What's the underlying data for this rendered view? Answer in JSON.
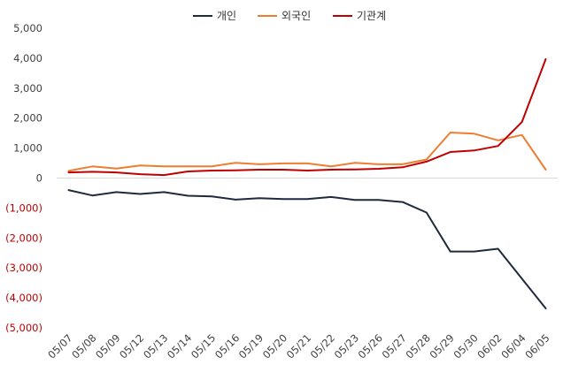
{
  "chart_data": {
    "type": "line",
    "title": "",
    "xlabel": "",
    "ylabel": "",
    "categories": [
      "05/07",
      "05/08",
      "05/09",
      "05/12",
      "05/13",
      "05/14",
      "05/15",
      "05/16",
      "05/19",
      "05/20",
      "05/21",
      "05/22",
      "05/23",
      "05/26",
      "05/27",
      "05/28",
      "05/29",
      "05/30",
      "06/02",
      "06/04",
      "06/05"
    ],
    "ylim": [
      -5000,
      5000
    ],
    "yticks": [
      5000,
      4000,
      3000,
      2000,
      1000,
      0,
      -1000,
      -2000,
      -3000,
      -4000,
      -5000
    ],
    "ytick_labels": [
      "5,000",
      "4,000",
      "3,000",
      "2,000",
      "1,000",
      "0",
      "(1,000)",
      "(2,000)",
      "(3,000)",
      "(4,000)",
      "(5,000)"
    ],
    "negative_tick_color": "#c00000",
    "positive_tick_color": "#404040",
    "grid": false,
    "legend_position": "top-center",
    "series": [
      {
        "name": "개인",
        "color": "#1f2a3c",
        "values": [
          -400,
          -580,
          -470,
          -530,
          -470,
          -590,
          -610,
          -720,
          -670,
          -700,
          -700,
          -630,
          -730,
          -730,
          -800,
          -1150,
          -2450,
          -2450,
          -2360,
          -3360,
          -4350
        ]
      },
      {
        "name": "외국인",
        "color": "#ed7d31",
        "values": [
          240,
          390,
          320,
          420,
          390,
          390,
          390,
          510,
          460,
          490,
          490,
          390,
          510,
          460,
          460,
          620,
          1520,
          1480,
          1260,
          1440,
          280
        ]
      },
      {
        "name": "기관계",
        "color": "#c00000",
        "values": [
          190,
          210,
          190,
          130,
          100,
          220,
          250,
          260,
          280,
          280,
          250,
          280,
          290,
          310,
          360,
          550,
          870,
          920,
          1070,
          1870,
          3970
        ]
      }
    ]
  }
}
